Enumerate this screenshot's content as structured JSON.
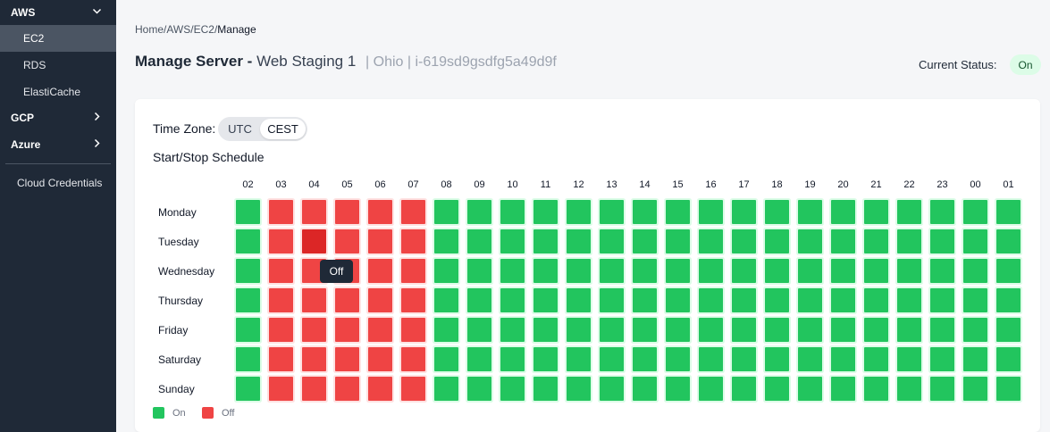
{
  "sidebar": {
    "groups": [
      {
        "label": "AWS",
        "chevron": "chevron-down-icon"
      },
      {
        "label": "GCP",
        "chevron": "chevron-right-icon"
      },
      {
        "label": "Azure",
        "chevron": "chevron-right-icon"
      }
    ],
    "aws_items": [
      {
        "label": "EC2",
        "active": true
      },
      {
        "label": "RDS",
        "active": false
      },
      {
        "label": "ElastiCache",
        "active": false
      }
    ],
    "credentials_label": "Cloud Credentials"
  },
  "breadcrumb": {
    "items": [
      "Home",
      "AWS",
      "EC2",
      "Manage"
    ],
    "separator": "/"
  },
  "header": {
    "title_lead": "Manage Server -",
    "server_name": "Web Staging 1",
    "meta": "| Ohio | i-619sd9gsdfg5a49d9f",
    "status_label": "Current Status:",
    "status_value": "On"
  },
  "timezone": {
    "label": "Time Zone:",
    "options": [
      "UTC",
      "CEST"
    ],
    "selected": "CEST"
  },
  "schedule": {
    "title": "Start/Stop Schedule",
    "hours": [
      "02",
      "03",
      "04",
      "05",
      "06",
      "07",
      "08",
      "09",
      "10",
      "11",
      "12",
      "13",
      "14",
      "15",
      "16",
      "17",
      "18",
      "19",
      "20",
      "21",
      "22",
      "23",
      "00",
      "01"
    ],
    "days": [
      "Monday",
      "Tuesday",
      "Wednesday",
      "Thursday",
      "Friday",
      "Saturday",
      "Sunday"
    ],
    "off_hours": [
      "03",
      "04",
      "05",
      "06",
      "07"
    ],
    "tooltip": "Off"
  },
  "legend": {
    "on_label": "On",
    "off_label": "Off"
  },
  "colors": {
    "on": "#22c55e",
    "off": "#ef4444",
    "sidebar_bg": "#1f2937",
    "status_badge_bg": "#dcfce7"
  }
}
